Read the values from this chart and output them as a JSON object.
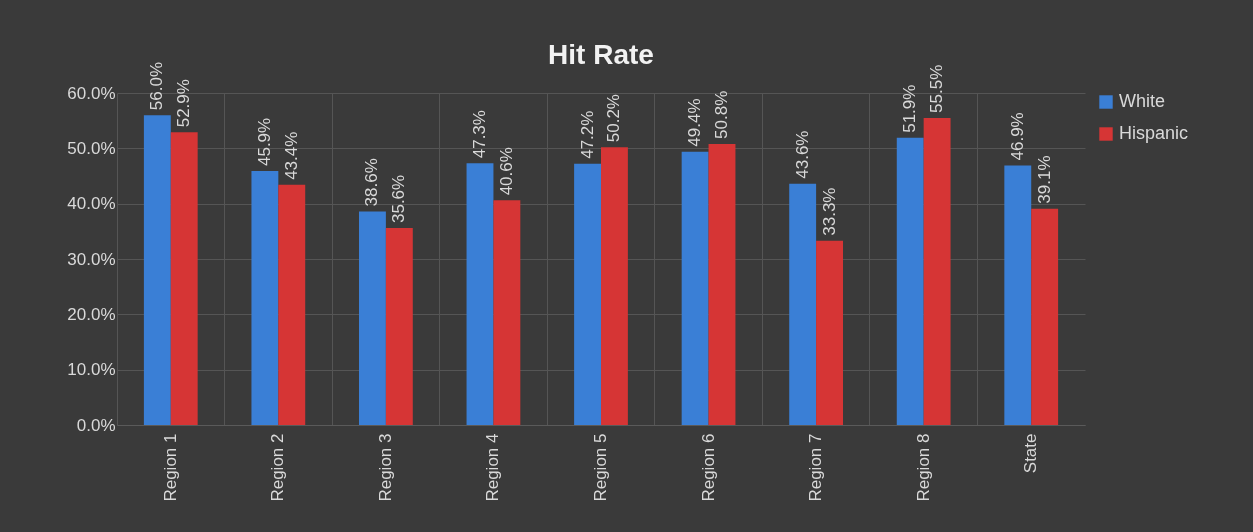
{
  "chart_data": {
    "type": "bar",
    "title": "Hit Rate",
    "categories": [
      "Region 1",
      "Region 2",
      "Region 3",
      "Region 4",
      "Region 5",
      "Region 6",
      "Region 7",
      "Region 8",
      "State"
    ],
    "series": [
      {
        "name": "White",
        "color": "#3a7fd6",
        "values": [
          56.0,
          45.9,
          38.6,
          47.3,
          47.2,
          49.4,
          43.6,
          51.9,
          46.9
        ],
        "value_labels": [
          "56.0%",
          "45.9%",
          "38.6%",
          "47.3%",
          "47.2%",
          "49.4%",
          "43.6%",
          "51.9%",
          "46.9%"
        ]
      },
      {
        "name": "Hispanic",
        "color": "#d63535",
        "values": [
          52.9,
          43.4,
          35.6,
          40.6,
          50.2,
          50.8,
          33.3,
          55.5,
          39.1
        ],
        "value_labels": [
          "52.9%",
          "43.4%",
          "35.6%",
          "40.6%",
          "50.2%",
          "50.8%",
          "33.3%",
          "55.5%",
          "39.1%"
        ]
      }
    ],
    "ylim": [
      0,
      60
    ],
    "yticks": [
      {
        "value": 0,
        "label": "0.0%"
      },
      {
        "value": 10,
        "label": "10.0%"
      },
      {
        "value": 20,
        "label": "20.0%"
      },
      {
        "value": 30,
        "label": "30.0%"
      },
      {
        "value": 40,
        "label": "40.0%"
      },
      {
        "value": 50,
        "label": "50.0%"
      },
      {
        "value": 60,
        "label": "60.0%"
      }
    ],
    "grid": true,
    "legend": "right"
  }
}
